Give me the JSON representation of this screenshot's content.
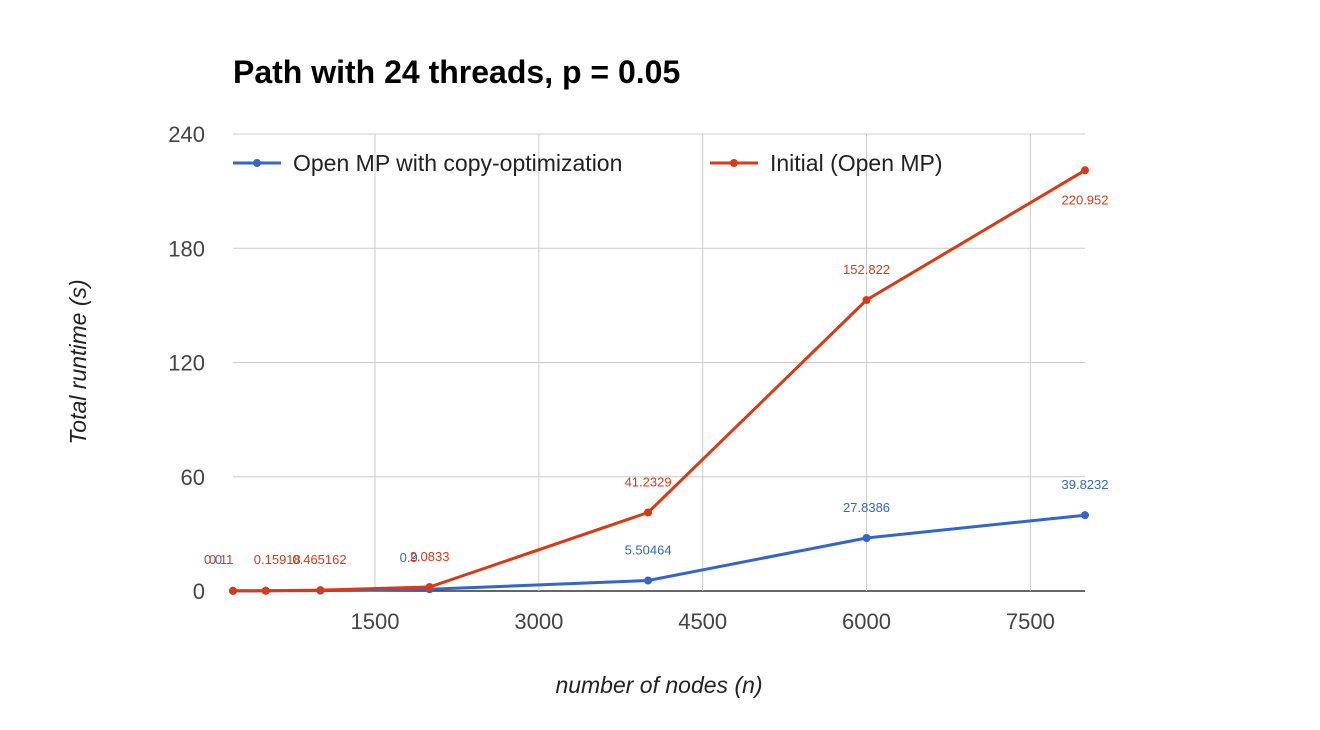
{
  "chart_data": {
    "type": "line",
    "title": "Path with 24 threads, p = 0.05",
    "xlabel": "number of nodes (n)",
    "ylabel": "Total runtime (s)",
    "xlim": [
      200,
      8000
    ],
    "ylim": [
      0,
      240
    ],
    "xticks": [
      1500,
      3000,
      4500,
      6000,
      7500
    ],
    "yticks": [
      0,
      60,
      120,
      180,
      240
    ],
    "grid": true,
    "legend_position": "top",
    "series": [
      {
        "name": "Open MP with copy-optimization",
        "color": "#3366cc",
        "x": [
          200,
          500,
          1000,
          2000,
          4000,
          6000,
          8000
        ],
        "y": [
          0.05,
          0.1,
          0.2,
          0.9,
          5.50464,
          27.8386,
          39.8232
        ],
        "labels": [
          "0.0",
          "",
          "",
          "0.9",
          "5.50464",
          "27.8386",
          "39.8232"
        ]
      },
      {
        "name": "Initial (Open MP)",
        "color": "#dc3912",
        "x": [
          200,
          500,
          1000,
          2000,
          4000,
          6000,
          8000
        ],
        "y": [
          0.11,
          0.15918,
          0.465162,
          2.0833,
          41.2329,
          152.822,
          220.952
        ],
        "labels": [
          "0.11",
          "0.15918",
          "0.465162",
          "2.0833",
          "41.2329",
          "152.822",
          "220.952"
        ]
      }
    ]
  }
}
